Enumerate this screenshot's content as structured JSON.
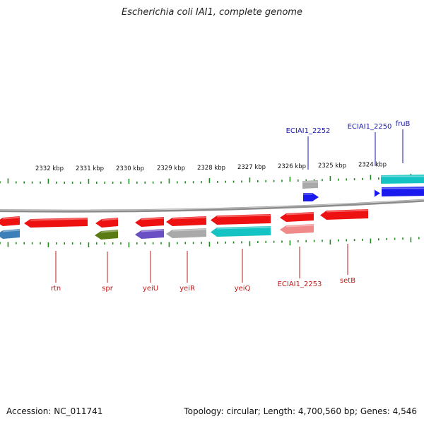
{
  "title": "Escherichia coli IAI1, complete genome",
  "accession": "Accession: NC_011741",
  "summary": "Topology: circular; Length: 4,700,560 bp; Genes: 4,546",
  "colors": {
    "backbone": "#8c8c8c",
    "tick": "#1e8c1e",
    "forward_label": "#1a1aa8",
    "reverse_label": "#c01818",
    "scale_text": "#111111"
  },
  "scale_labels": [
    "2332 kbp",
    "2331 kbp",
    "2330 kbp",
    "2329 kbp",
    "2328 kbp",
    "2327 kbp",
    "2326 kbp",
    "2325 kbp",
    "2324 kbp"
  ],
  "genes": [
    {
      "name": "",
      "strand": "reverse",
      "row": 0,
      "color": "#ee1111"
    },
    {
      "name": "rtn",
      "strand": "reverse",
      "row": 0,
      "color": "#ee1111"
    },
    {
      "name": "spr",
      "strand": "reverse",
      "row": 0,
      "color": "#ee1111"
    },
    {
      "name": "yeiU",
      "strand": "reverse",
      "row": 0,
      "color": "#ee1111"
    },
    {
      "name": "yeiR",
      "strand": "reverse",
      "row": 0,
      "color": "#ee1111"
    },
    {
      "name": "yeiQ",
      "strand": "reverse",
      "row": 0,
      "color": "#ee1111"
    },
    {
      "name": "ECIAI1_2253",
      "strand": "reverse",
      "row": 0,
      "color": "#ee1111"
    },
    {
      "name": "setB",
      "strand": "reverse",
      "row": 0,
      "color": "#ee1111"
    },
    {
      "name": "",
      "strand": "reverse",
      "row": 1,
      "color": "#3d7fb8"
    },
    {
      "name": "",
      "strand": "reverse",
      "row": 1,
      "color": "#5a7a14"
    },
    {
      "name": "",
      "strand": "reverse",
      "row": 1,
      "color": "#6a4fc4"
    },
    {
      "name": "",
      "strand": "reverse",
      "row": 1,
      "color": "#a9a9a9"
    },
    {
      "name": "",
      "strand": "reverse",
      "row": 1,
      "color": "#14c4c4"
    },
    {
      "name": "",
      "strand": "reverse",
      "row": 1,
      "color": "#f08a8a"
    },
    {
      "name": "ECIAI1_2252",
      "strand": "forward",
      "row": 1,
      "color": "#a9a9a9"
    },
    {
      "name": "",
      "strand": "forward",
      "row": 0,
      "color": "#1a1aee"
    },
    {
      "name": "ECIAI1_2250",
      "strand": "forward",
      "row": 0,
      "color": "#1a1aee"
    },
    {
      "name": "fruB",
      "strand": "forward",
      "row": 1,
      "color": "#14c4c4"
    },
    {
      "name": "",
      "strand": "forward",
      "row": 0,
      "color": "#1a1aee"
    }
  ]
}
